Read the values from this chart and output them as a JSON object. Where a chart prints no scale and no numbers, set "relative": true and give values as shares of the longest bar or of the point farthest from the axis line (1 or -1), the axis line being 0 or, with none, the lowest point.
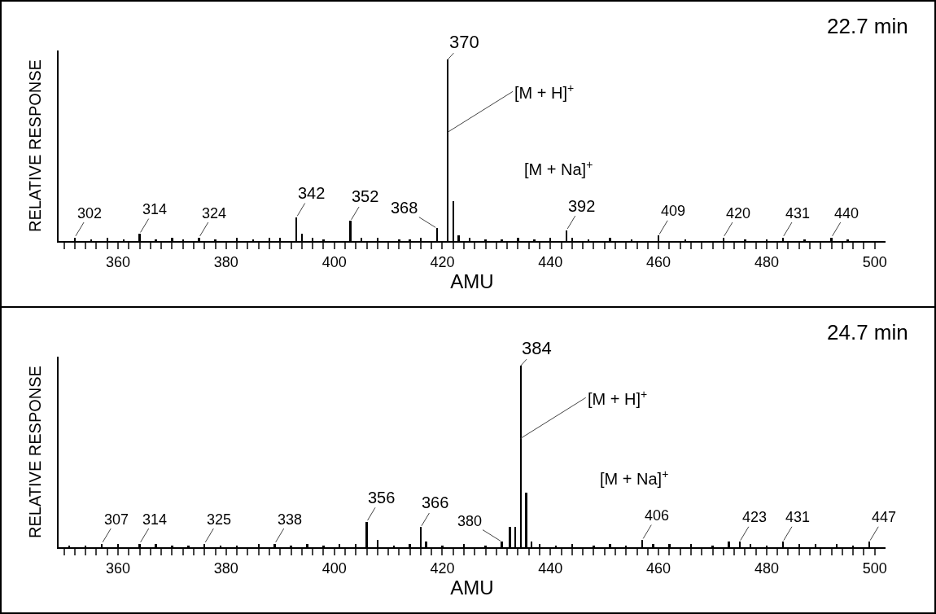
{
  "chart_data": [
    {
      "type": "bar",
      "relative": true,
      "xlabel": "AMU",
      "ylabel": "RELATIVE RESPONSE",
      "color": "#000000",
      "x": [
        352,
        355,
        358,
        361,
        364,
        367,
        370,
        372,
        375,
        378,
        382,
        385,
        388,
        390,
        393,
        394,
        396,
        398,
        403,
        405,
        408,
        412,
        414,
        416,
        419,
        421,
        422,
        423,
        425,
        428,
        431,
        434,
        437,
        440,
        443,
        444,
        447,
        451,
        455,
        460,
        465,
        472,
        476,
        480,
        483,
        487,
        492,
        495
      ],
      "values": [
        0.02,
        0.01,
        0.02,
        0.01,
        0.04,
        0.01,
        0.02,
        0.01,
        0.02,
        0.01,
        0.02,
        0.01,
        0.02,
        0.02,
        0.13,
        0.04,
        0.02,
        0.01,
        0.11,
        0.02,
        0.02,
        0.01,
        0.01,
        0.02,
        0.07,
        1,
        0.22,
        0.03,
        0.02,
        0.01,
        0.01,
        0.02,
        0.01,
        0.02,
        0.06,
        0.02,
        0.01,
        0.02,
        0.01,
        0.03,
        0.01,
        0.02,
        0.01,
        0.01,
        0.02,
        0.01,
        0.02,
        0.01
      ],
      "xlim": [
        349,
        502
      ],
      "xticks": [
        {
          "value": 350,
          "label": null
        },
        {
          "value": 352,
          "label": null
        },
        {
          "value": 354,
          "label": null
        },
        {
          "value": 356,
          "label": null
        },
        {
          "value": 358,
          "label": null
        },
        360,
        {
          "value": 362,
          "label": null
        },
        {
          "value": 364,
          "label": null
        },
        {
          "value": 366,
          "label": null
        },
        {
          "value": 368,
          "label": null
        },
        {
          "value": 370,
          "label": null
        },
        {
          "value": 372,
          "label": null
        },
        {
          "value": 374,
          "label": null
        },
        {
          "value": 376,
          "label": null
        },
        {
          "value": 378,
          "label": null
        },
        380,
        {
          "value": 382,
          "label": null
        },
        {
          "value": 384,
          "label": null
        },
        {
          "value": 386,
          "label": null
        },
        {
          "value": 388,
          "label": null
        },
        {
          "value": 390,
          "label": null
        },
        {
          "value": 392,
          "label": null
        },
        {
          "value": 394,
          "label": null
        },
        {
          "value": 396,
          "label": null
        },
        {
          "value": 398,
          "label": null
        },
        400,
        {
          "value": 402,
          "label": null
        },
        {
          "value": 404,
          "label": null
        },
        {
          "value": 406,
          "label": null
        },
        {
          "value": 408,
          "label": null
        },
        {
          "value": 410,
          "label": null
        },
        {
          "value": 412,
          "label": null
        },
        {
          "value": 414,
          "label": null
        },
        {
          "value": 416,
          "label": null
        },
        {
          "value": 418,
          "label": null
        },
        420,
        {
          "value": 422,
          "label": null
        },
        {
          "value": 424,
          "label": null
        },
        {
          "value": 426,
          "label": null
        },
        {
          "value": 428,
          "label": null
        },
        {
          "value": 430,
          "label": null
        },
        {
          "value": 432,
          "label": null
        },
        {
          "value": 434,
          "label": null
        },
        {
          "value": 436,
          "label": null
        },
        {
          "value": 438,
          "label": null
        },
        440,
        {
          "value": 442,
          "label": null
        },
        {
          "value": 444,
          "label": null
        },
        {
          "value": 446,
          "label": null
        },
        {
          "value": 448,
          "label": null
        },
        {
          "value": 450,
          "label": null
        },
        {
          "value": 452,
          "label": null
        },
        {
          "value": 454,
          "label": null
        },
        {
          "value": 456,
          "label": null
        },
        {
          "value": 458,
          "label": null
        },
        460,
        {
          "value": 462,
          "label": null
        },
        {
          "value": 464,
          "label": null
        },
        {
          "value": 466,
          "label": null
        },
        {
          "value": 468,
          "label": null
        },
        {
          "value": 470,
          "label": null
        },
        {
          "value": 472,
          "label": null
        },
        {
          "value": 474,
          "label": null
        },
        {
          "value": 476,
          "label": null
        },
        {
          "value": 478,
          "label": null
        },
        480,
        {
          "value": 482,
          "label": null
        },
        {
          "value": 484,
          "label": null
        },
        {
          "value": 486,
          "label": null
        },
        {
          "value": 488,
          "label": null
        },
        {
          "value": 490,
          "label": null
        },
        {
          "value": 492,
          "label": null
        },
        {
          "value": 494,
          "label": null
        },
        {
          "value": 496,
          "label": null
        },
        {
          "value": 498,
          "label": null
        },
        500
      ],
      "annotations": [
        "22.7 min",
        {
          "text": "302",
          "x": 352,
          "y": 0.02
        },
        {
          "text": "314",
          "x": 364,
          "y": 0.04
        },
        {
          "text": "324",
          "x": 375,
          "y": 0.02
        },
        {
          "text": "342",
          "x": 393,
          "y": 0.13
        },
        {
          "text": "352",
          "x": 403,
          "y": 0.11
        },
        {
          "text": "368",
          "x": 419,
          "y": 0.07
        },
        {
          "text": "370",
          "x": 421,
          "y": 1
        },
        {
          "text": "[M + H]$^{+}$",
          "x": 421,
          "y": 0.6
        },
        {
          "text": "392",
          "x": 443,
          "y": 0.06
        },
        "[M + Na]$^{+}$",
        {
          "text": "409",
          "x": 460,
          "y": 0.03
        },
        {
          "text": "420",
          "x": 472,
          "y": 0.02
        },
        {
          "text": "431",
          "x": 483,
          "y": 0.02
        },
        {
          "text": "440",
          "x": 492,
          "y": 0.02
        }
      ]
    },
    {
      "type": "bar",
      "relative": true,
      "xlabel": "AMU",
      "ylabel": "RELATIVE RESPONSE",
      "color": "#000000",
      "x": [
        351,
        354,
        357,
        360,
        364,
        367,
        370,
        373,
        376,
        379,
        382,
        386,
        389,
        392,
        395,
        398,
        401,
        404,
        406,
        408,
        411,
        414,
        416,
        417,
        420,
        424,
        428,
        431,
        432.5,
        433.5,
        434.5,
        435.5,
        436.5,
        438,
        441,
        444,
        448,
        451,
        454,
        457,
        459,
        462,
        466,
        470,
        473,
        475,
        477,
        480,
        483,
        486,
        489,
        493,
        496,
        499
      ],
      "values": [
        0.01,
        0.01,
        0.02,
        0.02,
        0.02,
        0.02,
        0.01,
        0.01,
        0.02,
        0.01,
        0.01,
        0.02,
        0.02,
        0.01,
        0.02,
        0.01,
        0.02,
        0.02,
        0.14,
        0.04,
        0.01,
        0.02,
        0.11,
        0.03,
        0.01,
        0.02,
        0.01,
        0.03,
        0.11,
        0.11,
        1,
        0.3,
        0.03,
        0.02,
        0.01,
        0.02,
        0.01,
        0.02,
        0.01,
        0.04,
        0.02,
        0.02,
        0.02,
        0.01,
        0.03,
        0.03,
        0.02,
        0.01,
        0.03,
        0.02,
        0.02,
        0.02,
        0.01,
        0.03
      ],
      "xlim": [
        349,
        502
      ],
      "xticks": [
        {
          "value": 350,
          "label": null
        },
        {
          "value": 352,
          "label": null
        },
        {
          "value": 354,
          "label": null
        },
        {
          "value": 356,
          "label": null
        },
        {
          "value": 358,
          "label": null
        },
        360,
        {
          "value": 362,
          "label": null
        },
        {
          "value": 364,
          "label": null
        },
        {
          "value": 366,
          "label": null
        },
        {
          "value": 368,
          "label": null
        },
        {
          "value": 370,
          "label": null
        },
        {
          "value": 372,
          "label": null
        },
        {
          "value": 374,
          "label": null
        },
        {
          "value": 376,
          "label": null
        },
        {
          "value": 378,
          "label": null
        },
        380,
        {
          "value": 382,
          "label": null
        },
        {
          "value": 384,
          "label": null
        },
        {
          "value": 386,
          "label": null
        },
        {
          "value": 388,
          "label": null
        },
        {
          "value": 390,
          "label": null
        },
        {
          "value": 392,
          "label": null
        },
        {
          "value": 394,
          "label": null
        },
        {
          "value": 396,
          "label": null
        },
        {
          "value": 398,
          "label": null
        },
        400,
        {
          "value": 402,
          "label": null
        },
        {
          "value": 404,
          "label": null
        },
        {
          "value": 406,
          "label": null
        },
        {
          "value": 408,
          "label": null
        },
        {
          "value": 410,
          "label": null
        },
        {
          "value": 412,
          "label": null
        },
        {
          "value": 414,
          "label": null
        },
        {
          "value": 416,
          "label": null
        },
        {
          "value": 418,
          "label": null
        },
        420,
        {
          "value": 422,
          "label": null
        },
        {
          "value": 424,
          "label": null
        },
        {
          "value": 426,
          "label": null
        },
        {
          "value": 428,
          "label": null
        },
        {
          "value": 430,
          "label": null
        },
        {
          "value": 432,
          "label": null
        },
        {
          "value": 434,
          "label": null
        },
        {
          "value": 436,
          "label": null
        },
        {
          "value": 438,
          "label": null
        },
        440,
        {
          "value": 442,
          "label": null
        },
        {
          "value": 444,
          "label": null
        },
        {
          "value": 446,
          "label": null
        },
        {
          "value": 448,
          "label": null
        },
        {
          "value": 450,
          "label": null
        },
        {
          "value": 452,
          "label": null
        },
        {
          "value": 454,
          "label": null
        },
        {
          "value": 456,
          "label": null
        },
        {
          "value": 458,
          "label": null
        },
        460,
        {
          "value": 462,
          "label": null
        },
        {
          "value": 464,
          "label": null
        },
        {
          "value": 466,
          "label": null
        },
        {
          "value": 468,
          "label": null
        },
        {
          "value": 470,
          "label": null
        },
        {
          "value": 472,
          "label": null
        },
        {
          "value": 474,
          "label": null
        },
        {
          "value": 476,
          "label": null
        },
        {
          "value": 478,
          "label": null
        },
        480,
        {
          "value": 482,
          "label": null
        },
        {
          "value": 484,
          "label": null
        },
        {
          "value": 486,
          "label": null
        },
        {
          "value": 488,
          "label": null
        },
        {
          "value": 490,
          "label": null
        },
        {
          "value": 492,
          "label": null
        },
        {
          "value": 494,
          "label": null
        },
        {
          "value": 496,
          "label": null
        },
        {
          "value": 498,
          "label": null
        },
        500
      ],
      "annotations": [
        "24.7 min",
        {
          "text": "307",
          "x": 357,
          "y": 0.02
        },
        {
          "text": "314",
          "x": 364,
          "y": 0.02
        },
        {
          "text": "325",
          "x": 376,
          "y": 0.02
        },
        {
          "text": "338",
          "x": 389,
          "y": 0.02
        },
        {
          "text": "356",
          "x": 406,
          "y": 0.14
        },
        {
          "text": "366",
          "x": 416,
          "y": 0.11
        },
        {
          "text": "380",
          "x": 431,
          "y": 0.03
        },
        {
          "text": "384",
          "x": 434.5,
          "y": 1
        },
        {
          "text": "[M + H]$^{+}$",
          "x": 434.5,
          "y": 0.6
        },
        {
          "text": "406",
          "x": 457,
          "y": 0.04
        },
        "[M + Na]$^{+}$",
        {
          "text": "423",
          "x": 475,
          "y": 0.03
        },
        {
          "text": "431",
          "x": 483,
          "y": 0.03
        },
        {
          "text": "447",
          "x": 499,
          "y": 0.03
        }
      ]
    }
  ]
}
